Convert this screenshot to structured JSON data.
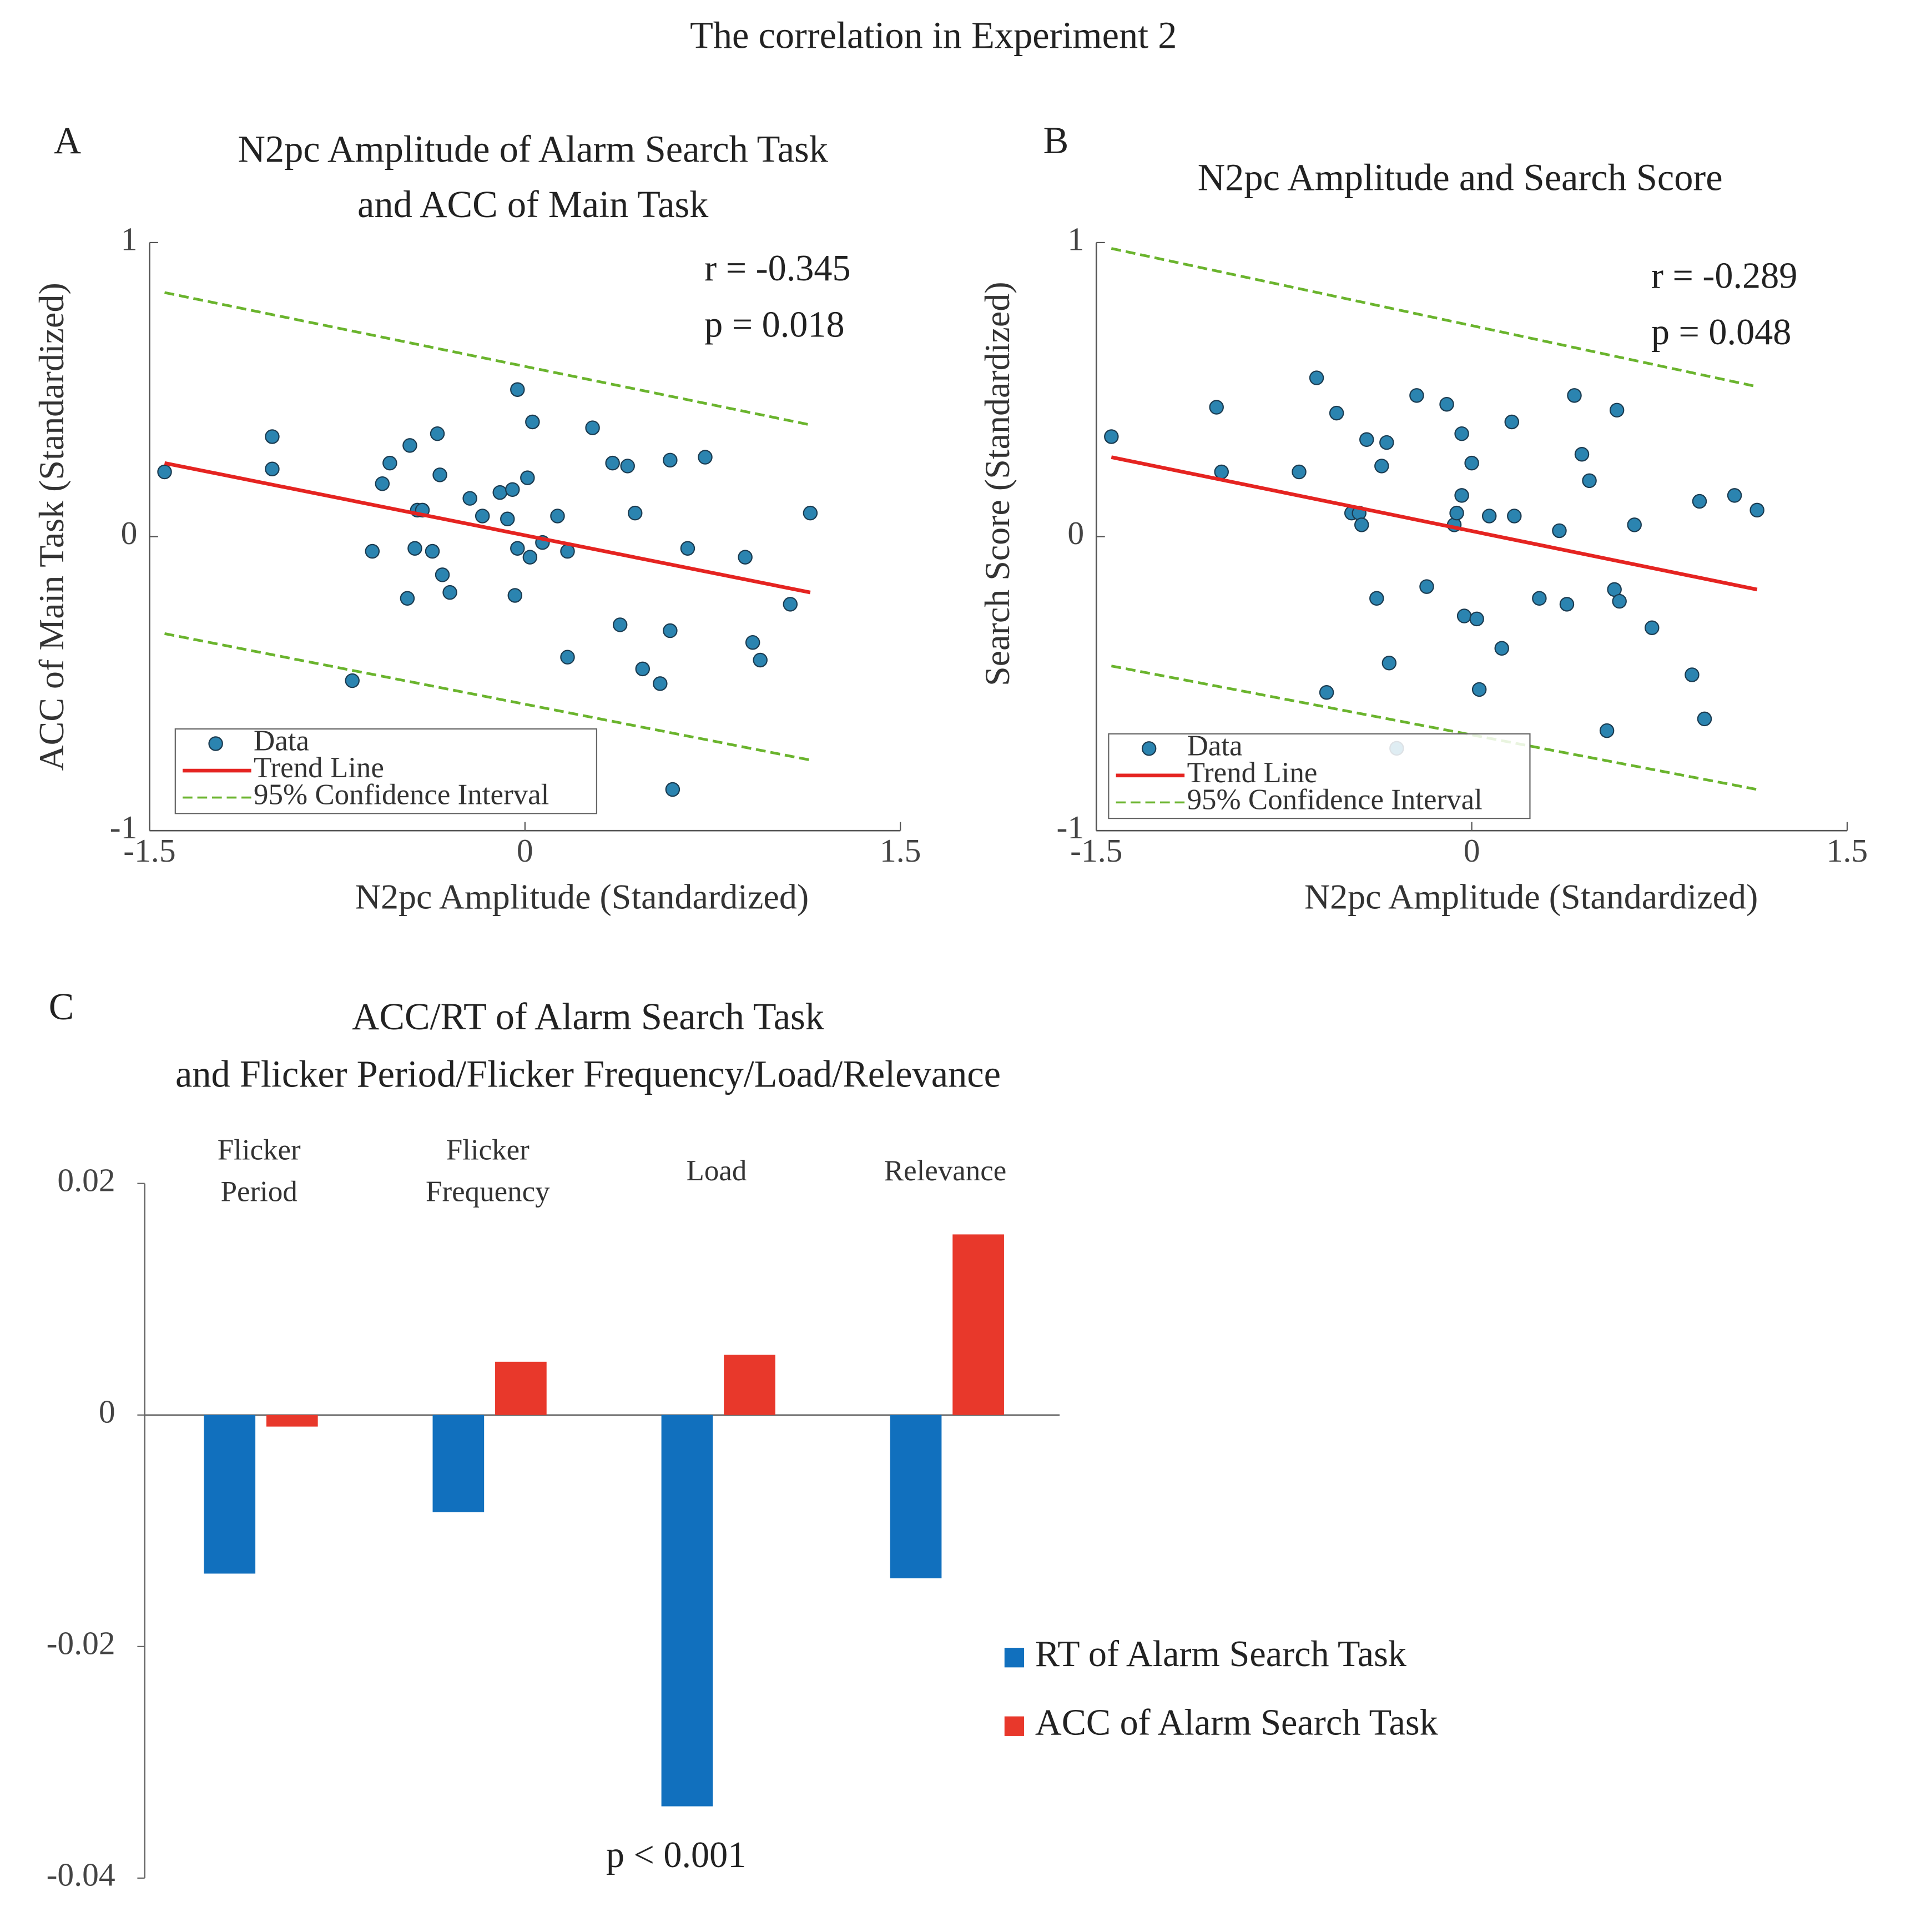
{
  "title": "The correlation in Experiment 2",
  "chart_data": [
    {
      "type": "scatter",
      "panel_label": "A",
      "title": [
        "N2pc Amplitude of Alarm Search Task",
        "and ACC of Main Task"
      ],
      "xlabel": "N2pc Amplitude (Standardized)",
      "ylabel": "ACC of Main Task (Standardized)",
      "annotations": [
        "r = -0.345",
        "p = 0.018"
      ],
      "xlim": [
        -1.5,
        1.5
      ],
      "xticks": [
        -1.5,
        0,
        1.5
      ],
      "ylim": [
        -1,
        1
      ],
      "yticks": [
        -1,
        0,
        1
      ],
      "legend": "lower left",
      "series": [
        {
          "name": "Data",
          "color": "#2b84b0",
          "x": [
            -1.44,
            -1.01,
            -1.01,
            -0.69,
            -0.61,
            -0.57,
            -0.54,
            -0.47,
            -0.46,
            -0.44,
            -0.43,
            -0.41,
            -0.37,
            -0.35,
            -0.34,
            -0.33,
            -0.3,
            -0.22,
            -0.17,
            -0.1,
            -0.07,
            -0.05,
            -0.04,
            -0.03,
            -0.03,
            0.01,
            0.02,
            0.03,
            0.07,
            0.13,
            0.17,
            0.17,
            0.27,
            0.35,
            0.38,
            0.41,
            0.44,
            0.47,
            0.54,
            0.58,
            0.58,
            0.59,
            0.65,
            0.72,
            0.88,
            0.91,
            0.94,
            1.06,
            1.14
          ],
          "values": [
            0.22,
            0.34,
            0.23,
            -0.49,
            -0.05,
            0.18,
            0.25,
            -0.21,
            0.31,
            -0.04,
            0.09,
            0.09,
            -0.05,
            0.35,
            0.21,
            -0.13,
            -0.19,
            0.13,
            0.07,
            0.15,
            0.06,
            0.16,
            -0.2,
            0.5,
            -0.04,
            0.2,
            -0.07,
            0.39,
            -0.02,
            0.07,
            -0.41,
            -0.05,
            0.37,
            0.25,
            -0.3,
            0.24,
            0.08,
            -0.45,
            -0.5,
            -0.32,
            0.26,
            -0.86,
            -0.04,
            0.27,
            -0.07,
            -0.36,
            -0.42,
            -0.23,
            0.08
          ]
        },
        {
          "name": "Trend Line",
          "color": "#e52421",
          "x": [
            -1.44,
            1.14
          ],
          "values": [
            0.25,
            -0.19
          ]
        },
        {
          "name": "95% Confidence Interval",
          "color": "#6ab42d",
          "x": [
            -1.44,
            1.14
          ],
          "upper": [
            0.83,
            0.38
          ],
          "lower": [
            -0.33,
            -0.76
          ]
        }
      ]
    },
    {
      "type": "scatter",
      "panel_label": "B",
      "title": [
        "N2pc Amplitude and Search Score"
      ],
      "xlabel": "N2pc Amplitude (Standardized)",
      "ylabel": "Search Score (Standardized)",
      "annotations": [
        "r = -0.289",
        "p = 0.048"
      ],
      "xlim": [
        -1.5,
        1.5
      ],
      "xticks": [
        -1.5,
        0,
        1.5
      ],
      "ylim": [
        -1,
        1
      ],
      "yticks": [
        -1,
        0,
        1
      ],
      "legend": "lower left",
      "series": [
        {
          "name": "Data",
          "color": "#2b84b0",
          "x": [
            -1.44,
            -1.02,
            -1.0,
            -0.69,
            -0.62,
            -0.58,
            -0.54,
            -0.48,
            -0.45,
            -0.44,
            -0.42,
            -0.38,
            -0.36,
            -0.34,
            -0.33,
            -0.3,
            -0.22,
            -0.18,
            -0.1,
            -0.07,
            -0.06,
            -0.04,
            -0.04,
            -0.03,
            0.0,
            0.02,
            0.03,
            0.07,
            0.12,
            0.16,
            0.17,
            0.27,
            0.35,
            0.38,
            0.41,
            0.44,
            0.47,
            0.54,
            0.57,
            0.58,
            0.59,
            0.65,
            0.72,
            0.88,
            0.91,
            0.93,
            1.05,
            1.14
          ],
          "values": [
            0.34,
            0.44,
            0.22,
            0.22,
            0.54,
            -0.53,
            0.42,
            0.08,
            0.08,
            0.04,
            0.33,
            -0.21,
            0.24,
            0.32,
            -0.43,
            -0.72,
            0.48,
            -0.17,
            0.45,
            0.04,
            0.08,
            0.14,
            0.35,
            -0.27,
            0.25,
            -0.28,
            -0.52,
            0.07,
            -0.38,
            0.39,
            0.07,
            -0.21,
            0.02,
            -0.23,
            0.48,
            0.28,
            0.19,
            -0.66,
            -0.18,
            0.43,
            -0.22,
            0.04,
            -0.31,
            -0.47,
            0.12,
            -0.62,
            0.14,
            0.09
          ]
        },
        {
          "name": "Trend Line",
          "color": "#e52421",
          "x": [
            -1.44,
            1.14
          ],
          "values": [
            0.27,
            -0.18
          ]
        },
        {
          "name": "95% Confidence Interval",
          "color": "#6ab42d",
          "x": [
            -1.44,
            1.14
          ],
          "upper": [
            0.98,
            0.51
          ],
          "lower": [
            -0.44,
            -0.86
          ]
        }
      ]
    },
    {
      "type": "bar",
      "panel_label": "C",
      "title": [
        "ACC/RT of Alarm Search Task",
        "and Flicker Period/Flicker Frequency/Load/Relevance"
      ],
      "categories": [
        "Flicker Period",
        "Flicker Frequency",
        "Load",
        "Relevance"
      ],
      "annotations": [
        "p < 0.001"
      ],
      "ylim": [
        -0.04,
        0.02
      ],
      "yticks": [
        -0.04,
        -0.02,
        0,
        0.02
      ],
      "legend": "right",
      "series": [
        {
          "name": "RT of Alarm Search Task",
          "color": "#1170be",
          "values": [
            -0.0137,
            -0.0084,
            -0.0338,
            -0.0141
          ]
        },
        {
          "name": "ACC of Alarm Search Task",
          "color": "#e8382b",
          "values": [
            -0.001,
            0.0046,
            0.0052,
            0.0156
          ]
        }
      ]
    }
  ]
}
